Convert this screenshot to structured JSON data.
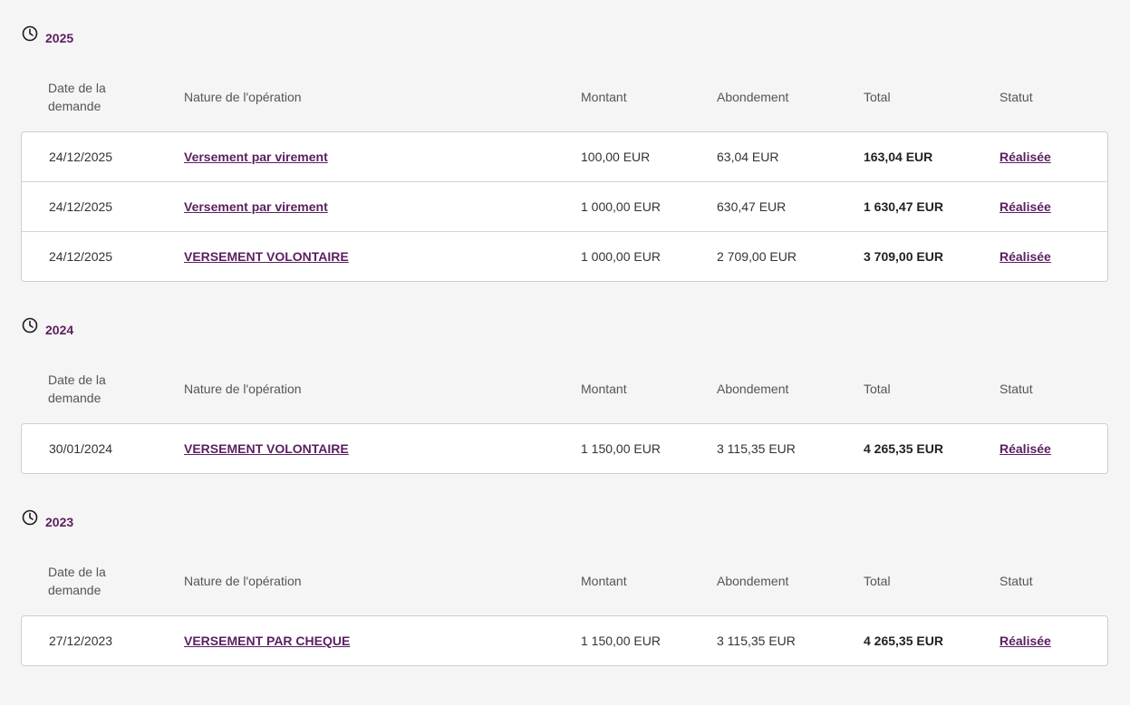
{
  "colors": {
    "accent": "#5b1f61",
    "background": "#f5f5f5",
    "border": "#cfcfcf"
  },
  "columns": {
    "date": "Date de la demande",
    "nature": "Nature de l'opération",
    "montant": "Montant",
    "abondement": "Abondement",
    "total": "Total",
    "statut": "Statut"
  },
  "sections": [
    {
      "year": "2025",
      "icon": "clock-icon",
      "rows": [
        {
          "date": "24/12/2025",
          "nature": "Versement par virement",
          "montant": "100,00 EUR",
          "abondement": "63,04 EUR",
          "total": "163,04 EUR",
          "statut": "Réalisée"
        },
        {
          "date": "24/12/2025",
          "nature": "Versement par virement",
          "montant": "1 000,00 EUR",
          "abondement": "630,47 EUR",
          "total": "1 630,47 EUR",
          "statut": "Réalisée"
        },
        {
          "date": "24/12/2025",
          "nature": "VERSEMENT VOLONTAIRE",
          "montant": "1 000,00 EUR",
          "abondement": "2 709,00 EUR",
          "total": "3 709,00 EUR",
          "statut": "Réalisée"
        }
      ]
    },
    {
      "year": "2024",
      "icon": "clock-icon",
      "rows": [
        {
          "date": "30/01/2024",
          "nature": "VERSEMENT VOLONTAIRE",
          "montant": "1 150,00 EUR",
          "abondement": "3 115,35 EUR",
          "total": "4 265,35 EUR",
          "statut": "Réalisée"
        }
      ]
    },
    {
      "year": "2023",
      "icon": "clock-icon",
      "rows": [
        {
          "date": "27/12/2023",
          "nature": "VERSEMENT PAR CHEQUE",
          "montant": "1 150,00 EUR",
          "abondement": "3 115,35 EUR",
          "total": "4 265,35 EUR",
          "statut": "Réalisée"
        }
      ]
    }
  ]
}
